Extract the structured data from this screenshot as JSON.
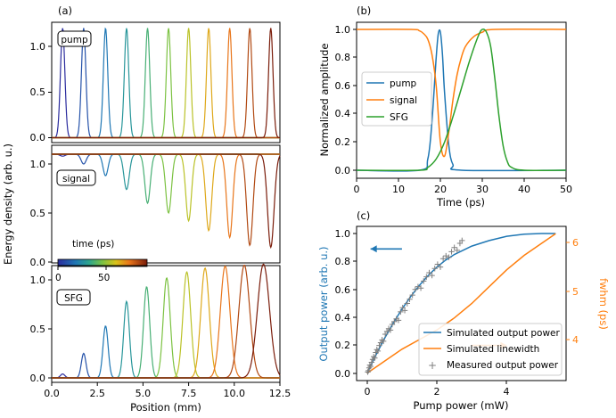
{
  "palette": [
    "#1f77b4",
    "#ff7f0e",
    "#2ca02c",
    "#7f7f7f"
  ],
  "chart_data": [
    {
      "panel": "(a)",
      "type": "line",
      "xlabel": "Position (mm)",
      "ylabel": "Energy density (arb. u.)",
      "xlim": [
        0,
        12.5
      ],
      "xticks": [
        "0.0",
        "2.5",
        "5.0",
        "7.5",
        "10.0",
        "12.5"
      ],
      "colormap": "viridis to red-brown (time)",
      "colorbar": {
        "label": "time (ps)",
        "ticks": [
          "0",
          "50"
        ]
      },
      "subplots": [
        {
          "name": "pump",
          "ylim": [
            0,
            1.25
          ],
          "yticks": [
            "0.0",
            "0.5",
            "1.0"
          ],
          "pulses": [
            {
              "center": 0.6,
              "amp": 1.2,
              "width": 0.17
            },
            {
              "center": 1.75,
              "amp": 1.2,
              "width": 0.17
            },
            {
              "center": 2.95,
              "amp": 1.2,
              "width": 0.17
            },
            {
              "center": 4.1,
              "amp": 1.2,
              "width": 0.17
            },
            {
              "center": 5.25,
              "amp": 1.2,
              "width": 0.17
            },
            {
              "center": 6.4,
              "amp": 1.2,
              "width": 0.17
            },
            {
              "center": 7.5,
              "amp": 1.2,
              "width": 0.17
            },
            {
              "center": 8.6,
              "amp": 1.2,
              "width": 0.17
            },
            {
              "center": 9.75,
              "amp": 1.2,
              "width": 0.17
            },
            {
              "center": 10.85,
              "amp": 1.2,
              "width": 0.17
            },
            {
              "center": 12.0,
              "amp": 1.2,
              "width": 0.17
            }
          ]
        },
        {
          "name": "signal",
          "ylim": [
            0,
            1.2
          ],
          "yticks": [
            "0.0",
            "0.5",
            "1.0"
          ],
          "baseline": 1.1,
          "dips": [
            {
              "center": 0.6,
              "depth": 0.02,
              "width": 0.2
            },
            {
              "center": 1.75,
              "depth": 0.1,
              "width": 0.2
            },
            {
              "center": 2.95,
              "depth": 0.22,
              "width": 0.2
            },
            {
              "center": 4.1,
              "depth": 0.36,
              "width": 0.21
            },
            {
              "center": 5.25,
              "depth": 0.5,
              "width": 0.21
            },
            {
              "center": 6.4,
              "depth": 0.6,
              "width": 0.22
            },
            {
              "center": 7.5,
              "depth": 0.68,
              "width": 0.22
            },
            {
              "center": 8.6,
              "depth": 0.78,
              "width": 0.23
            },
            {
              "center": 9.75,
              "depth": 0.85,
              "width": 0.23
            },
            {
              "center": 10.85,
              "depth": 0.93,
              "width": 0.24
            },
            {
              "center": 12.0,
              "depth": 0.95,
              "width": 0.25
            }
          ]
        },
        {
          "name": "SFG",
          "ylim": [
            0,
            1.2
          ],
          "yticks": [
            "0.0",
            "0.5",
            "1.0"
          ],
          "pulses": [
            {
              "center": 0.6,
              "amp": 0.04,
              "width": 0.17
            },
            {
              "center": 1.75,
              "amp": 0.25,
              "width": 0.18
            },
            {
              "center": 2.95,
              "amp": 0.53,
              "width": 0.2
            },
            {
              "center": 4.1,
              "amp": 0.78,
              "width": 0.22
            },
            {
              "center": 5.2,
              "amp": 0.93,
              "width": 0.24
            },
            {
              "center": 6.3,
              "amp": 1.02,
              "width": 0.27
            },
            {
              "center": 7.4,
              "amp": 1.08,
              "width": 0.3
            },
            {
              "center": 8.4,
              "amp": 1.12,
              "width": 0.33
            },
            {
              "center": 9.5,
              "amp": 1.14,
              "width": 0.37
            },
            {
              "center": 10.55,
              "amp": 1.15,
              "width": 0.42
            },
            {
              "center": 11.6,
              "amp": 1.16,
              "width": 0.47
            }
          ]
        }
      ]
    },
    {
      "panel": "(b)",
      "type": "line",
      "xlabel": "Time (ps)",
      "ylabel": "Normalized amplitude",
      "xlim": [
        0,
        50
      ],
      "ylim": [
        0,
        1.05
      ],
      "xticks": [
        "0",
        "10",
        "20",
        "30",
        "40",
        "50"
      ],
      "yticks": [
        "0.0",
        "0.2",
        "0.4",
        "0.6",
        "0.8",
        "1.0"
      ],
      "legend": {
        "placement": "center-left",
        "entries": [
          "pump",
          "signal",
          "SFG"
        ]
      },
      "series": [
        {
          "name": "pump",
          "color": "#1f77b4",
          "x": [
            0,
            15,
            17,
            18,
            19,
            19.5,
            20,
            20.5,
            21,
            22,
            23,
            25,
            50
          ],
          "y": [
            0,
            0,
            0.08,
            0.35,
            0.8,
            0.97,
            0.98,
            0.82,
            0.55,
            0.18,
            0.04,
            0,
            0
          ]
        },
        {
          "name": "signal",
          "color": "#ff7f0e",
          "x": [
            0,
            13,
            15,
            16,
            17,
            18,
            19,
            20,
            21,
            22,
            23,
            24,
            25,
            26,
            28,
            30,
            33,
            50
          ],
          "y": [
            1.0,
            1.0,
            0.99,
            0.97,
            0.93,
            0.82,
            0.6,
            0.2,
            0.1,
            0.27,
            0.5,
            0.68,
            0.8,
            0.88,
            0.95,
            0.98,
            1.0,
            1.0
          ]
        },
        {
          "name": "SFG",
          "color": "#2ca02c",
          "x": [
            0,
            15,
            17,
            19,
            21,
            23,
            25,
            27,
            29,
            30,
            31,
            32,
            33,
            34,
            35,
            36,
            37,
            40,
            50
          ],
          "y": [
            0,
            0,
            0.02,
            0.08,
            0.2,
            0.38,
            0.58,
            0.78,
            0.95,
            1.0,
            0.98,
            0.88,
            0.65,
            0.38,
            0.17,
            0.06,
            0.02,
            0,
            0
          ]
        }
      ]
    },
    {
      "panel": "(c)",
      "type": "line",
      "xlabel": "Pump power (mW)",
      "ylabel": "Output power (arb. u.)",
      "ylabel_right": "fwhm (ps)",
      "xlim": [
        -0.3,
        5.7
      ],
      "ylim": [
        -0.03,
        1.04
      ],
      "ylim_right": [
        3.2,
        6.4
      ],
      "xticks": [
        "0",
        "2",
        "4"
      ],
      "yticks": [
        "0.0",
        "0.2",
        "0.4",
        "0.6",
        "0.8",
        "1.0"
      ],
      "yticks_right": [
        "4",
        "5",
        "6"
      ],
      "legend": {
        "placement": "lower-right",
        "entries": [
          "Simulated output power",
          "Simulated linewidth",
          "Measured output power"
        ]
      },
      "series": [
        {
          "name": "Simulated output power",
          "axis": "left",
          "color": "#1f77b4",
          "x": [
            0,
            0.25,
            0.5,
            0.75,
            1.0,
            1.25,
            1.5,
            1.75,
            2.0,
            2.25,
            2.5,
            2.75,
            3.0,
            3.5,
            4.0,
            4.5,
            5.0,
            5.4
          ],
          "y": [
            0,
            0.13,
            0.25,
            0.36,
            0.46,
            0.55,
            0.63,
            0.7,
            0.76,
            0.81,
            0.85,
            0.88,
            0.91,
            0.95,
            0.98,
            0.995,
            1.0,
            1.0
          ]
        },
        {
          "name": "Simulated linewidth",
          "axis": "right",
          "color": "#ff7f0e",
          "x": [
            0,
            0.5,
            1.0,
            1.5,
            2.0,
            2.5,
            3.0,
            3.5,
            4.0,
            4.5,
            5.0,
            5.4
          ],
          "y": [
            3.3,
            3.55,
            3.8,
            4.0,
            4.2,
            4.45,
            4.75,
            5.1,
            5.45,
            5.75,
            6.0,
            6.2
          ]
        },
        {
          "name": "Measured output power",
          "axis": "left",
          "color": "#7f7f7f",
          "marker": "+",
          "x": [
            0.02,
            0.04,
            0.06,
            0.08,
            0.1,
            0.13,
            0.16,
            0.19,
            0.22,
            0.25,
            0.28,
            0.31,
            0.35,
            0.39,
            0.43,
            0.47,
            0.52,
            0.57,
            0.62,
            0.67,
            0.72,
            0.78,
            0.84,
            0.9,
            0.96,
            1.02,
            1.08,
            1.15,
            1.22,
            1.3,
            1.38,
            1.46,
            1.54,
            1.62,
            1.7,
            1.78,
            1.86,
            1.94,
            2.02,
            2.1,
            2.18,
            2.26,
            2.34,
            2.42,
            2.5,
            2.58,
            2.66,
            2.72
          ],
          "y": [
            0.01,
            0.02,
            0.04,
            0.06,
            0.05,
            0.08,
            0.1,
            0.12,
            0.11,
            0.15,
            0.17,
            0.16,
            0.2,
            0.22,
            0.24,
            0.23,
            0.28,
            0.3,
            0.32,
            0.31,
            0.35,
            0.37,
            0.39,
            0.38,
            0.44,
            0.47,
            0.45,
            0.5,
            0.53,
            0.56,
            0.6,
            0.62,
            0.61,
            0.66,
            0.69,
            0.72,
            0.7,
            0.75,
            0.78,
            0.76,
            0.82,
            0.84,
            0.83,
            0.87,
            0.9,
            0.88,
            0.93,
            0.95
          ]
        }
      ],
      "annotations": [
        {
          "type": "arrow",
          "direction": "left",
          "color": "#1f77b4",
          "axis": "left",
          "x_from": 1.0,
          "x_to": 0.1,
          "y": 0.89
        },
        {
          "type": "arrow",
          "direction": "right",
          "color": "#ff7f0e",
          "axis": "left",
          "x_from": 3.0,
          "x_to": 4.0,
          "y": 0.2
        }
      ]
    }
  ]
}
